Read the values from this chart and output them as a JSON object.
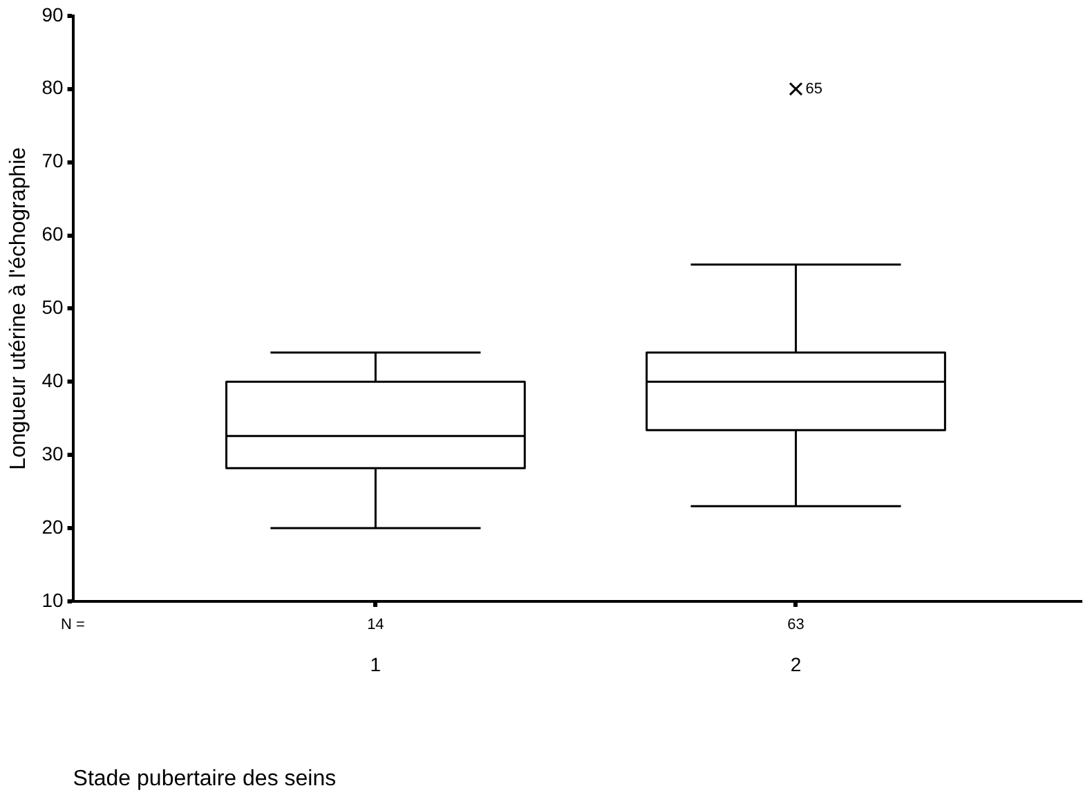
{
  "chart_data": {
    "type": "box",
    "xlabel": "Stade pubertaire des seins",
    "ylabel": "Longueur utérine à l'échographie",
    "categories": [
      "1",
      "2"
    ],
    "boxes": [
      {
        "low": 20,
        "q1": 28.2,
        "median": 32.6,
        "q3": 40,
        "high": 44
      },
      {
        "low": 23,
        "q1": 33.4,
        "median": 40,
        "q3": 44,
        "high": 56,
        "outliers": [
          80
        ]
      }
    ],
    "color": "#000000",
    "marker": "cross",
    "ylim": [
      10,
      90
    ],
    "yticks": [
      10,
      20,
      30,
      40,
      50,
      60,
      70,
      80,
      90
    ],
    "annotations": [
      "N =",
      {
        "text": "14",
        "x": "1"
      },
      {
        "text": "63",
        "x": "2"
      },
      "65"
    ]
  }
}
